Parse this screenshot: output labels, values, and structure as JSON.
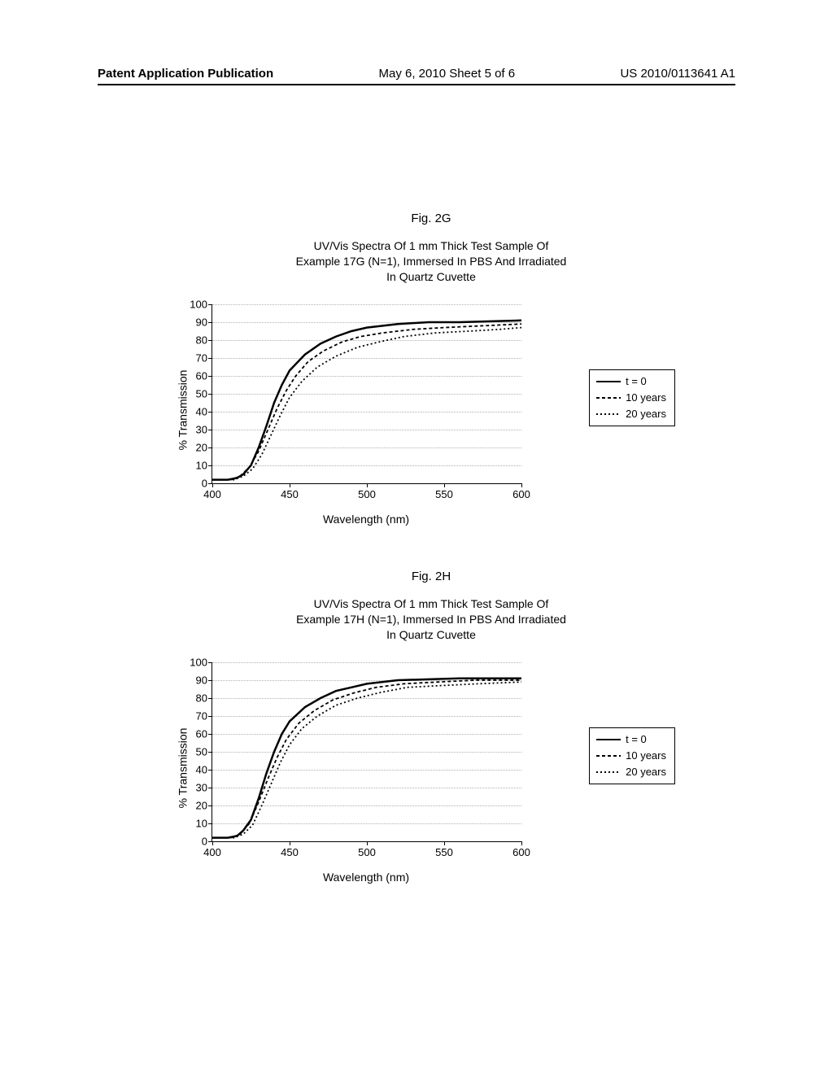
{
  "header": {
    "left": "Patent Application Publication",
    "center": "May 6, 2010  Sheet 5 of 6",
    "right": "US 2010/0113641 A1"
  },
  "common": {
    "ylabel": "% Transmission",
    "xlabel": "Wavelength (nm)",
    "xlim": [
      400,
      600
    ],
    "ylim": [
      0,
      100
    ],
    "yticks": [
      0,
      10,
      20,
      30,
      40,
      50,
      60,
      70,
      80,
      90,
      100
    ],
    "xticks": [
      400,
      450,
      500,
      550,
      600
    ],
    "grid_color": "#b0b0b0",
    "axis_color": "#000000",
    "background_color": "#ffffff",
    "text_color": "#000000",
    "tick_fontsize": 13,
    "label_fontsize": 14,
    "title_fontsize": 14,
    "figlabel_fontsize": 15,
    "line_width_main": 2.5,
    "line_width_other": 1.8
  },
  "legend": {
    "items": [
      {
        "label": "t = 0",
        "color": "#000000",
        "dash": "none"
      },
      {
        "label": "10 years",
        "color": "#000000",
        "dash": "4 3"
      },
      {
        "label": "20 years",
        "color": "#000000",
        "dash": "2 3"
      }
    ]
  },
  "fig2g": {
    "fig_label": "Fig. 2G",
    "title_line1": "UV/Vis Spectra Of 1 mm Thick Test Sample Of",
    "title_line2": "Example 17G (N=1), Immersed In PBS And Irradiated",
    "title_line3": "In Quartz Cuvette",
    "series": {
      "t0": {
        "color": "#000000",
        "dash": "none",
        "width": 2.5,
        "points": [
          [
            400,
            2
          ],
          [
            410,
            2
          ],
          [
            416,
            3
          ],
          [
            420,
            5
          ],
          [
            425,
            10
          ],
          [
            430,
            20
          ],
          [
            435,
            32
          ],
          [
            440,
            45
          ],
          [
            445,
            55
          ],
          [
            450,
            63
          ],
          [
            460,
            72
          ],
          [
            470,
            78
          ],
          [
            480,
            82
          ],
          [
            490,
            85
          ],
          [
            500,
            87
          ],
          [
            520,
            89
          ],
          [
            540,
            90
          ],
          [
            560,
            90
          ],
          [
            580,
            90.5
          ],
          [
            600,
            91
          ]
        ]
      },
      "y10": {
        "color": "#000000",
        "dash": "4 3",
        "width": 1.8,
        "points": [
          [
            400,
            2
          ],
          [
            412,
            2
          ],
          [
            418,
            4
          ],
          [
            424,
            9
          ],
          [
            430,
            18
          ],
          [
            436,
            30
          ],
          [
            442,
            42
          ],
          [
            448,
            52
          ],
          [
            454,
            60
          ],
          [
            462,
            68
          ],
          [
            472,
            74
          ],
          [
            484,
            79
          ],
          [
            496,
            82
          ],
          [
            510,
            84
          ],
          [
            530,
            86
          ],
          [
            550,
            87
          ],
          [
            575,
            88
          ],
          [
            600,
            89
          ]
        ]
      },
      "y20": {
        "color": "#000000",
        "dash": "2 3",
        "width": 1.8,
        "points": [
          [
            400,
            2
          ],
          [
            414,
            2
          ],
          [
            420,
            4
          ],
          [
            426,
            8
          ],
          [
            432,
            16
          ],
          [
            438,
            27
          ],
          [
            444,
            38
          ],
          [
            450,
            48
          ],
          [
            458,
            57
          ],
          [
            468,
            65
          ],
          [
            480,
            71
          ],
          [
            494,
            76
          ],
          [
            508,
            79
          ],
          [
            524,
            82
          ],
          [
            544,
            84
          ],
          [
            566,
            85
          ],
          [
            586,
            86
          ],
          [
            600,
            87
          ]
        ]
      }
    }
  },
  "fig2h": {
    "fig_label": "Fig. 2H",
    "title_line1": "UV/Vis Spectra Of 1 mm Thick Test Sample Of",
    "title_line2": "Example 17H (N=1), Immersed In PBS And Irradiated",
    "title_line3": "In Quartz Cuvette",
    "series": {
      "t0": {
        "color": "#000000",
        "dash": "none",
        "width": 2.5,
        "points": [
          [
            400,
            2
          ],
          [
            410,
            2
          ],
          [
            416,
            3
          ],
          [
            420,
            6
          ],
          [
            425,
            12
          ],
          [
            430,
            24
          ],
          [
            435,
            38
          ],
          [
            440,
            50
          ],
          [
            445,
            60
          ],
          [
            450,
            67
          ],
          [
            460,
            75
          ],
          [
            470,
            80
          ],
          [
            480,
            84
          ],
          [
            490,
            86
          ],
          [
            500,
            88
          ],
          [
            520,
            90
          ],
          [
            540,
            90.5
          ],
          [
            560,
            91
          ],
          [
            580,
            91
          ],
          [
            600,
            91
          ]
        ]
      },
      "y10": {
        "color": "#000000",
        "dash": "4 3",
        "width": 1.8,
        "points": [
          [
            400,
            2
          ],
          [
            412,
            2
          ],
          [
            418,
            4
          ],
          [
            424,
            10
          ],
          [
            430,
            22
          ],
          [
            436,
            35
          ],
          [
            442,
            47
          ],
          [
            448,
            57
          ],
          [
            456,
            66
          ],
          [
            466,
            73
          ],
          [
            478,
            79
          ],
          [
            492,
            83
          ],
          [
            506,
            86
          ],
          [
            524,
            88
          ],
          [
            546,
            89
          ],
          [
            570,
            90
          ],
          [
            600,
            90
          ]
        ]
      },
      "y20": {
        "color": "#000000",
        "dash": "2 3",
        "width": 1.8,
        "points": [
          [
            400,
            2
          ],
          [
            414,
            2
          ],
          [
            420,
            4
          ],
          [
            426,
            9
          ],
          [
            432,
            20
          ],
          [
            438,
            32
          ],
          [
            444,
            44
          ],
          [
            450,
            54
          ],
          [
            458,
            63
          ],
          [
            468,
            70
          ],
          [
            480,
            76
          ],
          [
            494,
            80
          ],
          [
            508,
            83
          ],
          [
            526,
            86
          ],
          [
            548,
            87
          ],
          [
            572,
            88
          ],
          [
            600,
            89
          ]
        ]
      }
    }
  }
}
